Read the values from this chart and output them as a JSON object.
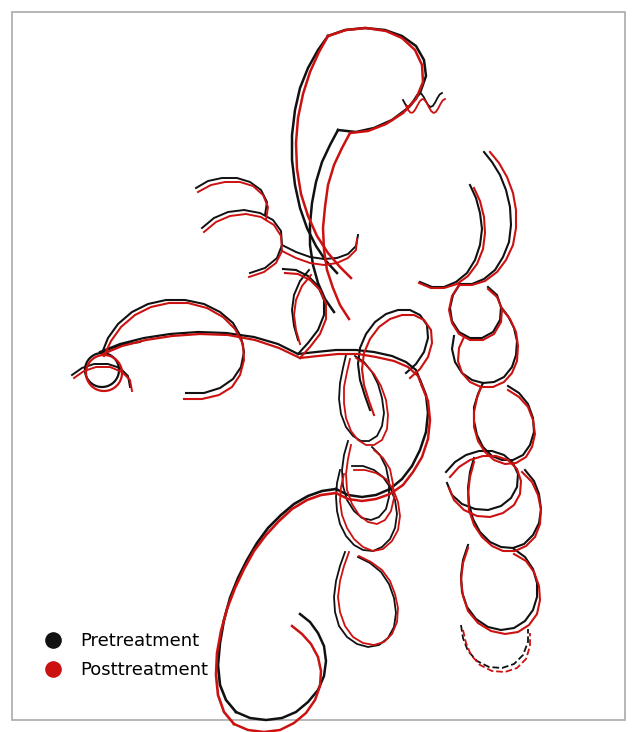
{
  "background_color": "#ffffff",
  "pretreatment_color": "#111111",
  "posttreatment_color": "#cc1111",
  "legend_labels": [
    "Pretreatment",
    "Posttreatment"
  ],
  "figsize": [
    6.37,
    7.32
  ],
  "dpi": 100,
  "xlim": [
    0,
    637
  ],
  "ylim": [
    732,
    0
  ],
  "border": [
    12,
    12,
    613,
    708
  ]
}
